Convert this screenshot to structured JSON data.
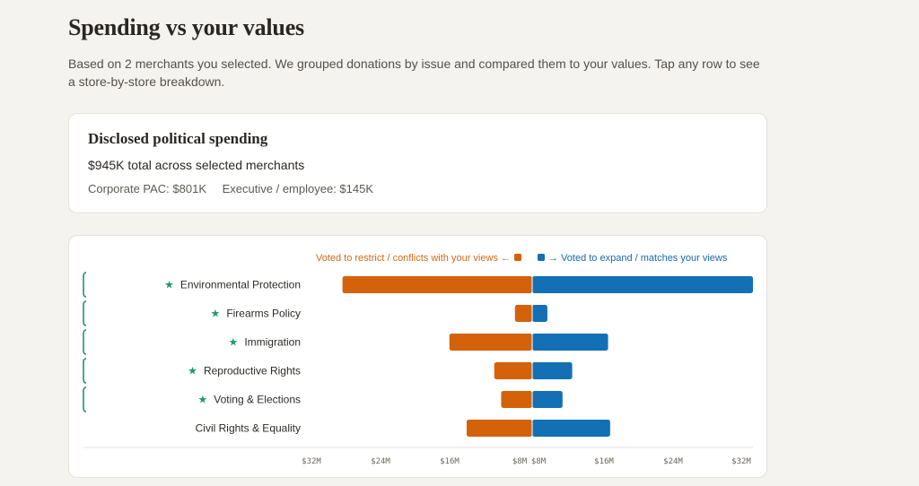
{
  "page": {
    "title": "Spending vs your values",
    "intro": "Based on 2 merchants you selected. We grouped donations by issue and compared them to your values. Tap any row to see a store-by-store breakdown."
  },
  "summary": {
    "title": "Disclosed political spending",
    "total": "$945K total across selected merchants",
    "corporate_pac": "Corporate PAC: $801K",
    "executive": "Executive / employee: $145K"
  },
  "colors": {
    "conflict": "#d4620b",
    "match": "#1470b4",
    "star": "#1f9a6e",
    "bracket": "#2a8f70"
  },
  "chart_data": {
    "type": "bar",
    "orientation": "diverging-horizontal",
    "legend": {
      "left": "Voted to restrict / conflicts with your views ←",
      "right": "→ Voted to expand / matches your views"
    },
    "categories": [
      "Environmental Protection",
      "Firearms Policy",
      "Immigration",
      "Reproductive Rights",
      "Voting & Elections",
      "Civil Rights & Equality"
    ],
    "starred": [
      true,
      true,
      true,
      true,
      true,
      false
    ],
    "series": [
      {
        "name": "Voted to restrict / conflicts with your views",
        "side": "left",
        "values": [
          27.5,
          2.5,
          12,
          5.5,
          4.5,
          9.5
        ]
      },
      {
        "name": "Voted to expand / matches your views",
        "side": "right",
        "values": [
          32,
          2.2,
          11,
          5.8,
          4.4,
          11.3
        ]
      }
    ],
    "xlim": [
      0,
      32
    ],
    "left_ticks": [
      "$32M",
      "$24M",
      "$16M",
      "$8M"
    ],
    "right_ticks": [
      "$8M",
      "$16M",
      "$24M",
      "$32M"
    ]
  }
}
